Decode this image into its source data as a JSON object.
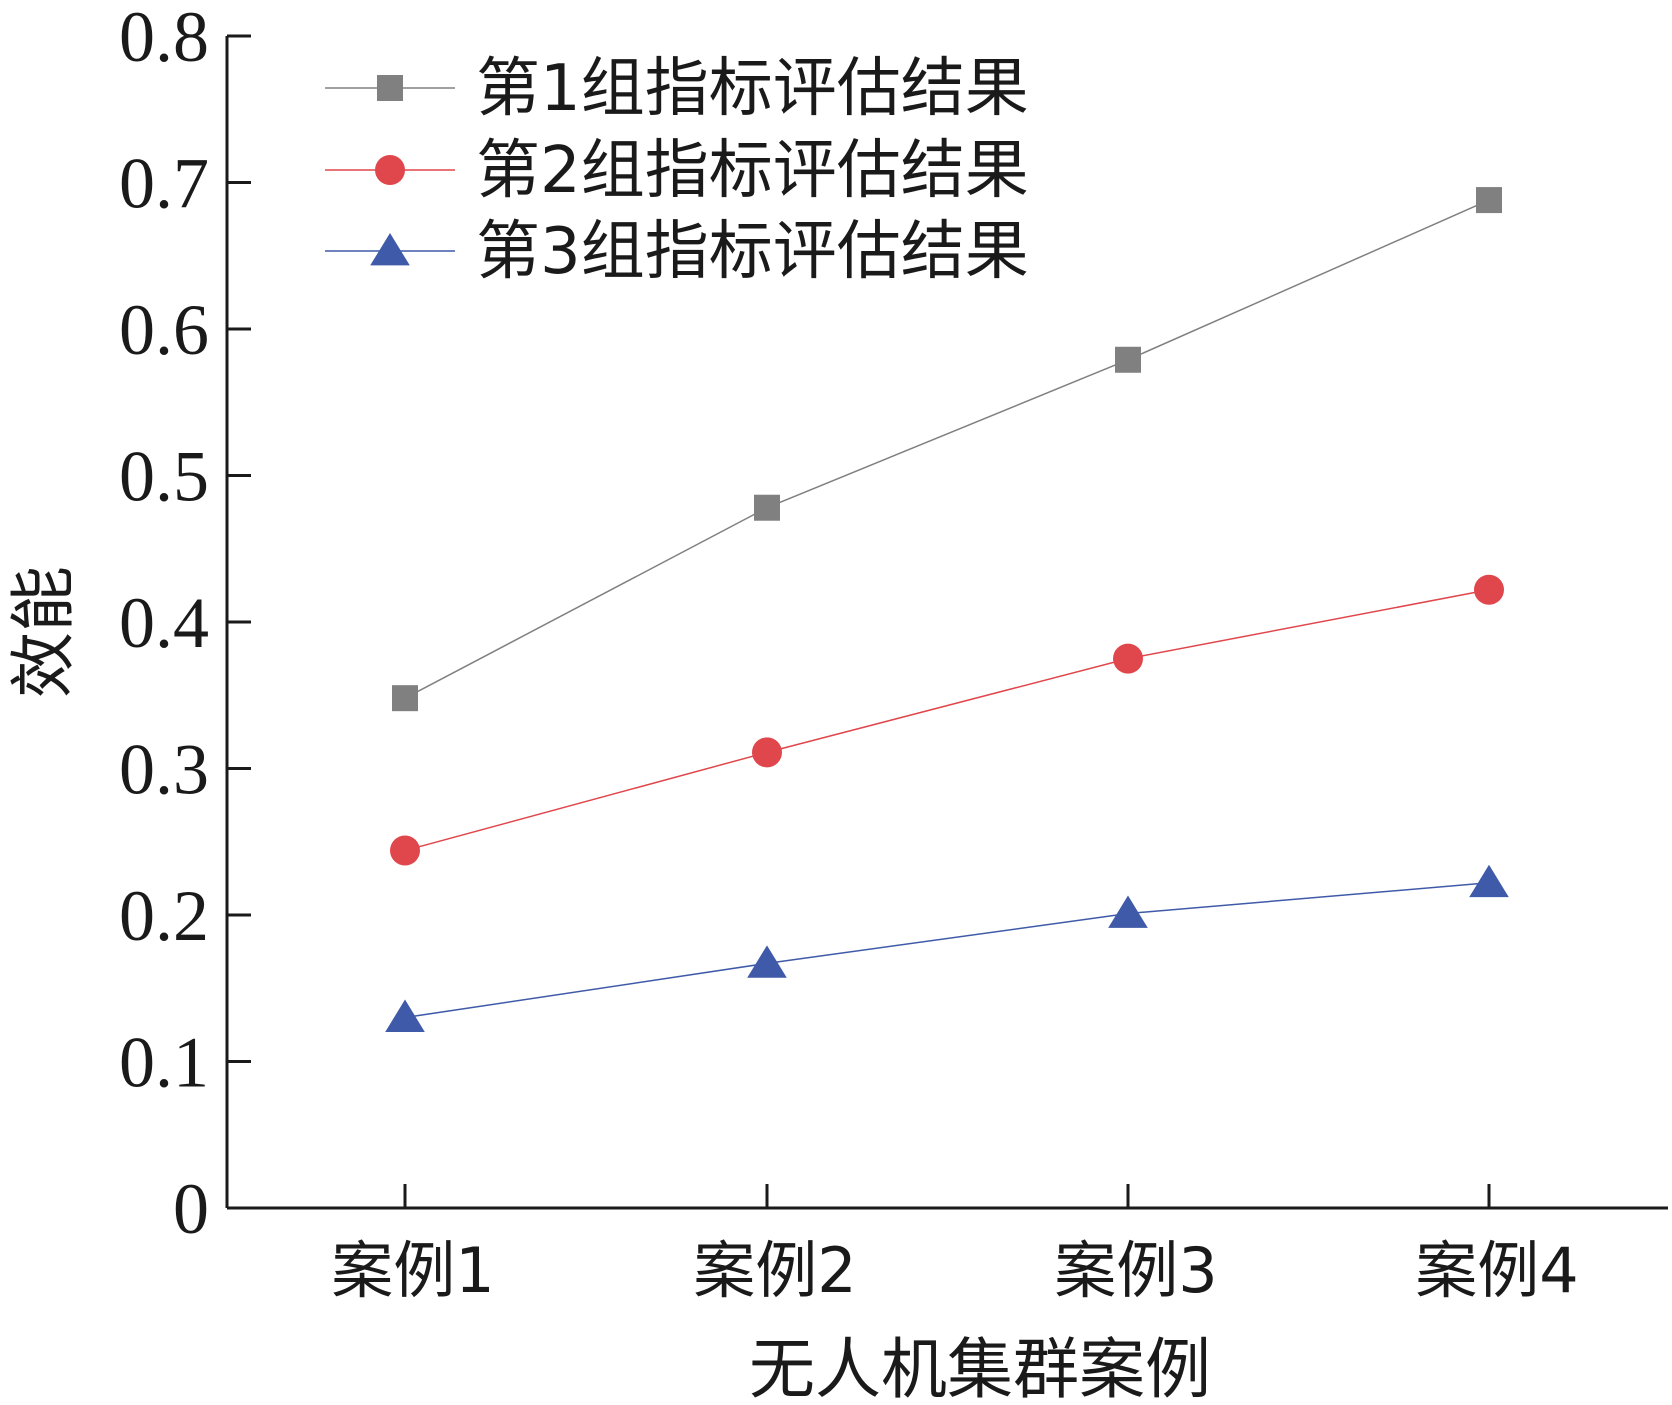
{
  "chart_data": {
    "type": "line",
    "categories": [
      "案例1",
      "案例2",
      "案例3",
      "案例4"
    ],
    "series": [
      {
        "name": "第1组指标评估结果",
        "marker": "square",
        "color": "#808080",
        "values": [
          0.348,
          0.478,
          0.579,
          0.688
        ]
      },
      {
        "name": "第2组指标评估结果",
        "marker": "circle",
        "color": "#e0474c",
        "values": [
          0.244,
          0.311,
          0.375,
          0.422
        ]
      },
      {
        "name": "第3组指标评估结果",
        "marker": "triangle",
        "color": "#3f5aa8",
        "values": [
          0.13,
          0.167,
          0.201,
          0.222
        ]
      }
    ],
    "xlabel": "无人机集群案例",
    "ylabel": "效能",
    "ylim": [
      0,
      0.8
    ],
    "yticks": [
      "0",
      "0.1",
      "0.2",
      "0.3",
      "0.4",
      "0.5",
      "0.6",
      "0.7",
      "0.8"
    ],
    "grid": false,
    "legend_position": "top-left"
  }
}
